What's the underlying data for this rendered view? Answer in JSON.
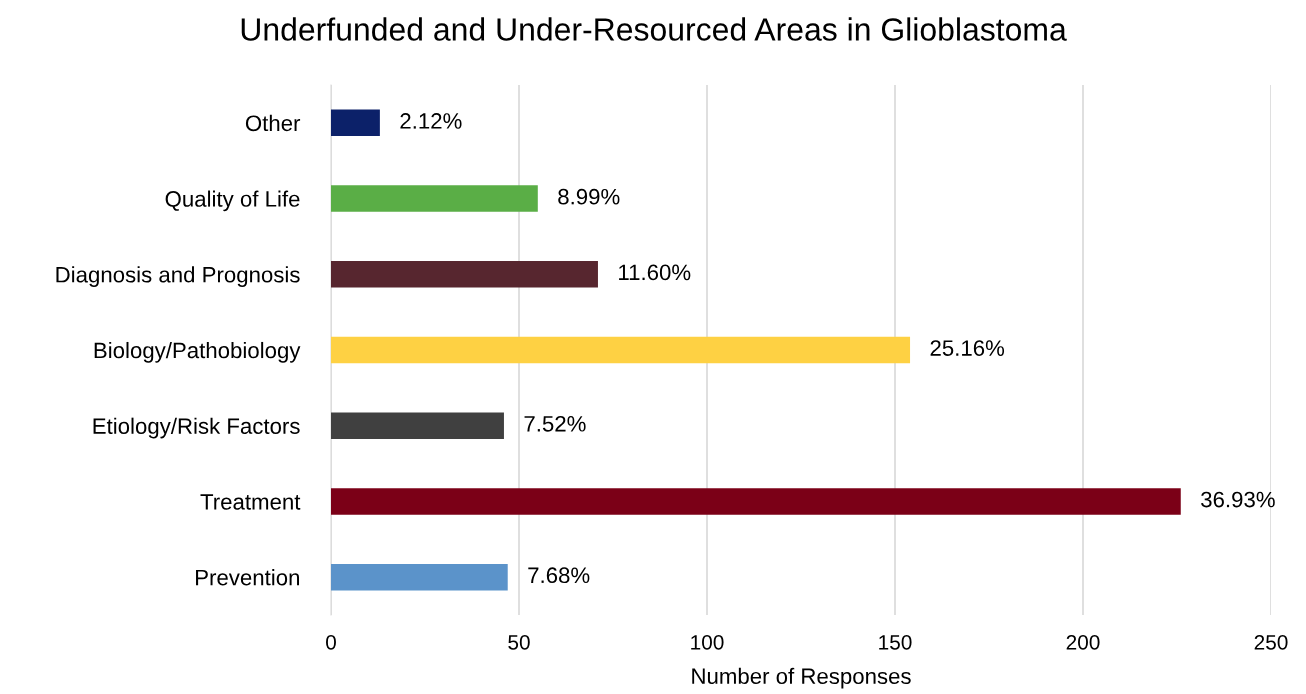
{
  "chart_data": {
    "type": "bar",
    "orientation": "horizontal",
    "title": "Underfunded and Under-Resourced Areas in Glioblastoma",
    "xlabel": "Number of Responses",
    "categories": [
      "Other",
      "Quality of Life",
      "Diagnosis and Prognosis",
      "Biology/Pathobiology",
      "Etiology/Risk Factors",
      "Treatment",
      "Prevention"
    ],
    "values": [
      13,
      55,
      71,
      154,
      46,
      226,
      47
    ],
    "colors": [
      "#0c2169",
      "#5aae46",
      "#57262f",
      "#fed143",
      "#404040",
      "#7b0017",
      "#5b93ca"
    ],
    "annotations": [
      {
        "text": "2.12%",
        "x": 13,
        "y": "Other"
      },
      {
        "text": "8.99%",
        "x": 55,
        "y": "Quality of Life"
      },
      {
        "text": "11.60%",
        "x": 71,
        "y": "Diagnosis and Prognosis"
      },
      {
        "text": "25.16%",
        "x": 154,
        "y": "Biology/Pathobiology"
      },
      {
        "text": "7.52%",
        "x": 46,
        "y": "Etiology/Risk Factors"
      },
      {
        "text": "36.93%",
        "x": 226,
        "y": "Treatment"
      },
      {
        "text": "7.68%",
        "x": 47,
        "y": "Prevention"
      }
    ],
    "xlim": [
      0,
      250
    ],
    "xticks": [
      0,
      50,
      100,
      150,
      200,
      250
    ],
    "grid": "x"
  }
}
